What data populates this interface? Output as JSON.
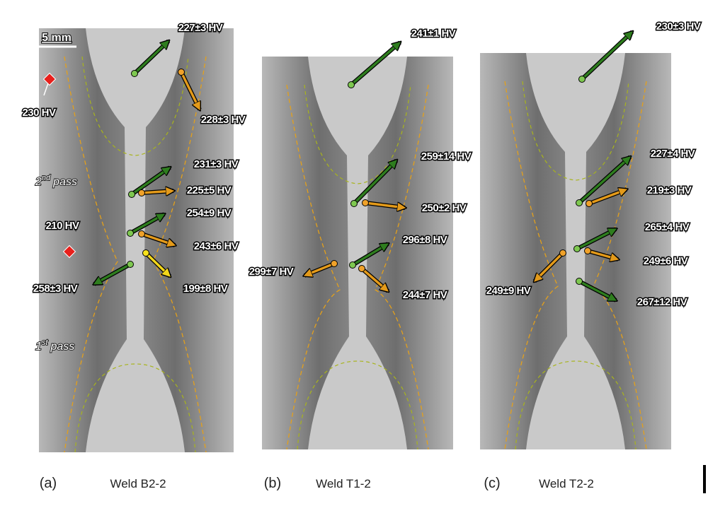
{
  "scale_bar": "5 mm",
  "panels": [
    {
      "label": "(a)",
      "title": "Weld B2-2",
      "pass_labels": [
        {
          "ordinal": "2",
          "suffix": "nd",
          "text": "pass"
        },
        {
          "ordinal": "1",
          "suffix": "st",
          "text": "pass"
        }
      ],
      "measurements": [
        "227±3 HV",
        "230 HV",
        "228±3 HV",
        "231±3 HV",
        "225±5 HV",
        "254±9 HV",
        "243±6 HV",
        "210 HV",
        "258±3 HV",
        "199±8 HV"
      ]
    },
    {
      "label": "(b)",
      "title": "Weld T1-2",
      "measurements": [
        "241±1 HV",
        "259±14 HV",
        "250±2 HV",
        "296±8 HV",
        "299±7 HV",
        "244±7 HV"
      ]
    },
    {
      "label": "(c)",
      "title": "Weld T2-2",
      "measurements": [
        "230±3 HV",
        "227±4 HV",
        "219±3 HV",
        "265±4 HV",
        "249±6 HV",
        "249±9 HV",
        "267±12 HV"
      ]
    }
  ]
}
